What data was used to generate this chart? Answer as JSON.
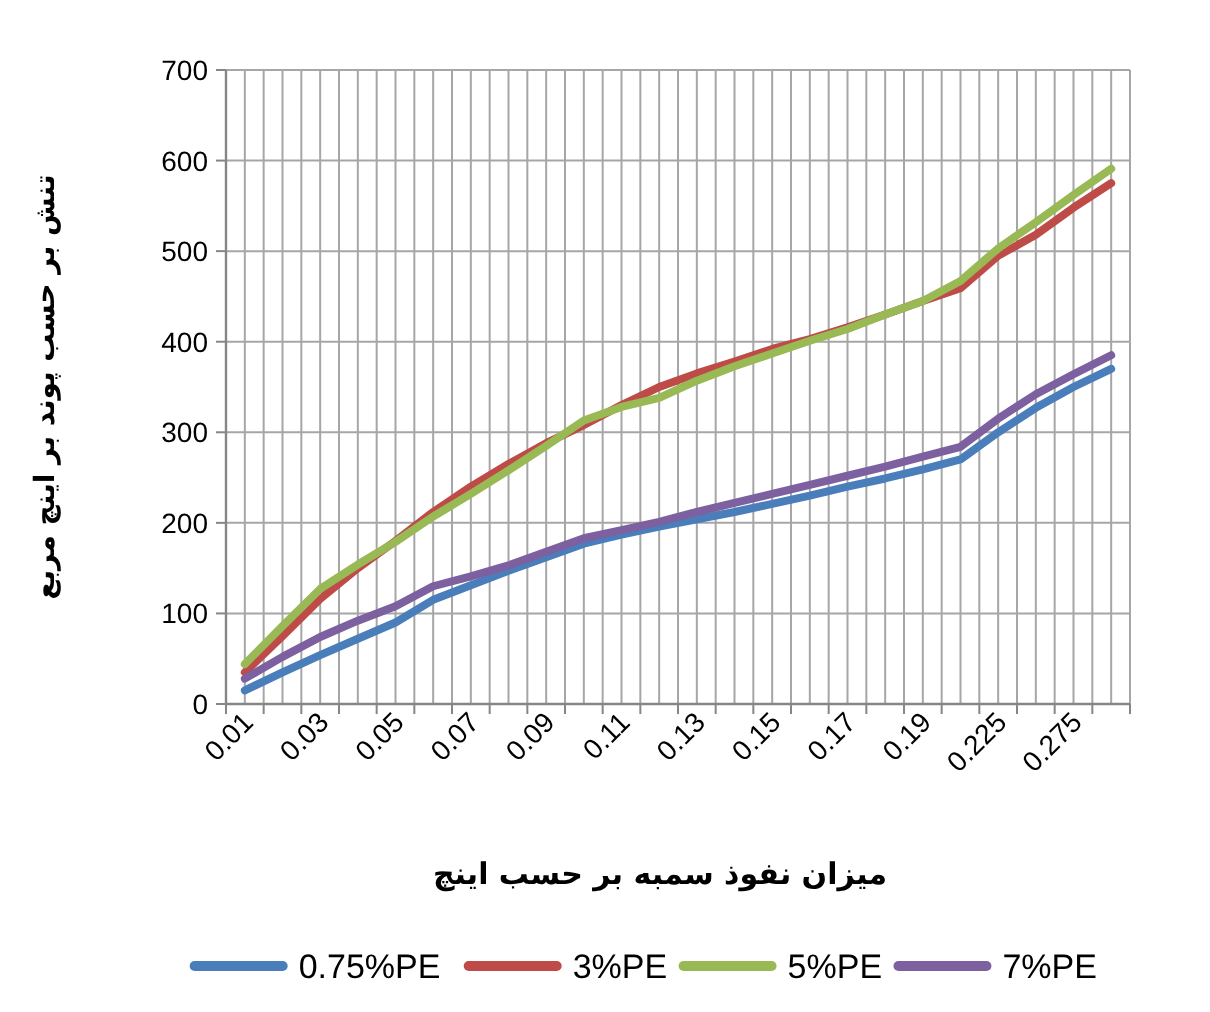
{
  "chart_data": {
    "type": "line",
    "xlabel": "میزان نفوذ سمبه بر حسب اینچ",
    "ylabel": "تنش بر حسب پوند بر اینچ مربع",
    "categories": [
      "0.01",
      null,
      "0.03",
      null,
      "0.05",
      null,
      "0.07",
      null,
      "0.09",
      null,
      "0.11",
      null,
      "0.13",
      null,
      "0.15",
      null,
      "0.17",
      null,
      "0.19",
      null,
      "0.225",
      null,
      "0.275",
      null
    ],
    "series": [
      {
        "name": "0.75%PE",
        "color": "#4a7ebb",
        "values": [
          15,
          35,
          54,
          72,
          90,
          115,
          131,
          147,
          162,
          177,
          187,
          196,
          204,
          212,
          221,
          230,
          240,
          249,
          259,
          270,
          300,
          327,
          350,
          370
        ]
      },
      {
        "name": "3%PE",
        "color": "#be4b48",
        "values": [
          35,
          75,
          116,
          150,
          180,
          212,
          240,
          265,
          288,
          308,
          330,
          350,
          365,
          378,
          392,
          403,
          416,
          430,
          445,
          459,
          495,
          518,
          548,
          575
        ]
      },
      {
        "name": "5%PE",
        "color": "#98b954",
        "values": [
          44,
          86,
          127,
          154,
          179,
          207,
          232,
          258,
          285,
          313,
          328,
          338,
          357,
          373,
          387,
          401,
          414,
          430,
          445,
          467,
          503,
          532,
          562,
          591
        ]
      },
      {
        "name": "7%PE",
        "color": "#7d60a0",
        "values": [
          28,
          52,
          74,
          92,
          108,
          130,
          141,
          153,
          168,
          183,
          192,
          201,
          212,
          222,
          232,
          242,
          252,
          262,
          273,
          284,
          315,
          342,
          364,
          385
        ]
      }
    ],
    "ylim": [
      0,
      700
    ],
    "yticks": [
      0,
      100,
      200,
      300,
      400,
      500,
      600,
      700
    ],
    "grid": true,
    "legend": "bottom",
    "line_style": "solid"
  }
}
